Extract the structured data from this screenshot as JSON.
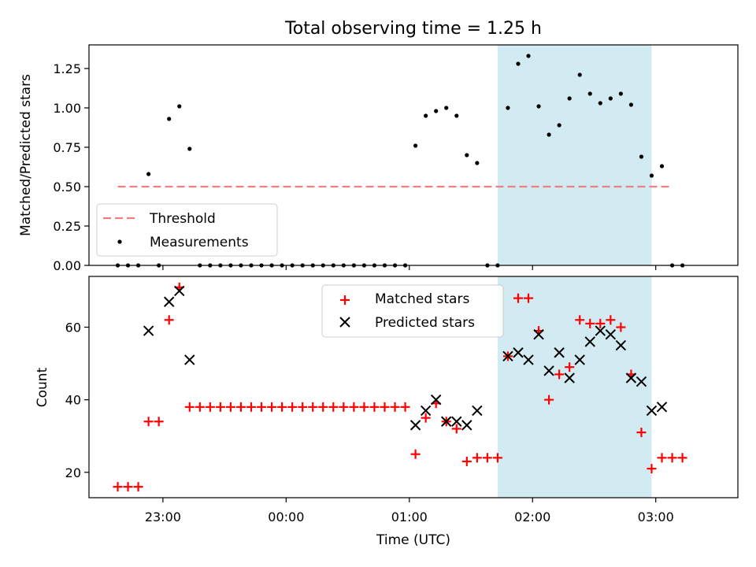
{
  "chart_data": {
    "type": "scatter",
    "title": "Total observing time = 1.25 h",
    "xlabel": "Time (UTC)",
    "x_unit": "UTC time",
    "xlim": [
      "22:24",
      "03:40"
    ],
    "x_ticks": [
      "23:00",
      "00:00",
      "01:00",
      "02:00",
      "03:00"
    ],
    "highlight_band": {
      "start": "01:43",
      "end": "02:58",
      "color": "#add8e6"
    },
    "top": {
      "ylabel": "Matched/Predicted stars",
      "ylim": [
        0,
        1.4
      ],
      "y_ticks": [
        "0.00",
        "0.25",
        "0.50",
        "0.75",
        "1.00",
        "1.25"
      ],
      "threshold": {
        "name": "Threshold",
        "value": 0.5,
        "x_start": "22:38",
        "x_end": "03:08",
        "color": "#f08080"
      },
      "measurements": {
        "name": "Measurements",
        "color": "#000000",
        "points": [
          [
            "22:38",
            0
          ],
          [
            "22:43",
            0
          ],
          [
            "22:48",
            0
          ],
          [
            "22:53",
            0.58
          ],
          [
            "22:58",
            0
          ],
          [
            "23:03",
            0.93
          ],
          [
            "23:08",
            1.01
          ],
          [
            "23:13",
            0.74
          ],
          [
            "23:18",
            0
          ],
          [
            "23:23",
            0
          ],
          [
            "23:28",
            0
          ],
          [
            "23:33",
            0
          ],
          [
            "23:38",
            0
          ],
          [
            "23:43",
            0
          ],
          [
            "23:48",
            0
          ],
          [
            "23:53",
            0
          ],
          [
            "23:58",
            0
          ],
          [
            "00:03",
            0
          ],
          [
            "00:08",
            0
          ],
          [
            "00:13",
            0
          ],
          [
            "00:18",
            0
          ],
          [
            "00:23",
            0
          ],
          [
            "00:28",
            0
          ],
          [
            "00:33",
            0
          ],
          [
            "00:38",
            0
          ],
          [
            "00:43",
            0
          ],
          [
            "00:48",
            0
          ],
          [
            "00:53",
            0
          ],
          [
            "00:58",
            0
          ],
          [
            "01:03",
            0.76
          ],
          [
            "01:08",
            0.95
          ],
          [
            "01:13",
            0.98
          ],
          [
            "01:18",
            1.0
          ],
          [
            "01:23",
            0.95
          ],
          [
            "01:28",
            0.7
          ],
          [
            "01:33",
            0.65
          ],
          [
            "01:38",
            0
          ],
          [
            "01:43",
            0
          ],
          [
            "01:48",
            1.0
          ],
          [
            "01:53",
            1.28
          ],
          [
            "01:58",
            1.33
          ],
          [
            "02:03",
            1.01
          ],
          [
            "02:08",
            0.83
          ],
          [
            "02:13",
            0.89
          ],
          [
            "02:18",
            1.06
          ],
          [
            "02:23",
            1.21
          ],
          [
            "02:28",
            1.09
          ],
          [
            "02:33",
            1.03
          ],
          [
            "02:38",
            1.06
          ],
          [
            "02:43",
            1.09
          ],
          [
            "02:48",
            1.02
          ],
          [
            "02:53",
            0.69
          ],
          [
            "02:58",
            0.57
          ],
          [
            "03:03",
            0.63
          ],
          [
            "03:08",
            0
          ],
          [
            "03:13",
            0
          ]
        ]
      }
    },
    "bottom": {
      "ylabel": "Count",
      "ylim": [
        13,
        74
      ],
      "y_ticks": [
        "20",
        "40",
        "60"
      ],
      "series": [
        {
          "name": "Matched stars",
          "marker": "+",
          "color": "#ff0000",
          "points": [
            [
              "22:38",
              16
            ],
            [
              "22:43",
              16
            ],
            [
              "22:48",
              16
            ],
            [
              "22:53",
              34
            ],
            [
              "22:58",
              34
            ],
            [
              "23:03",
              62
            ],
            [
              "23:08",
              71
            ],
            [
              "23:13",
              38
            ],
            [
              "23:18",
              38
            ],
            [
              "23:23",
              38
            ],
            [
              "23:28",
              38
            ],
            [
              "23:33",
              38
            ],
            [
              "23:38",
              38
            ],
            [
              "23:43",
              38
            ],
            [
              "23:48",
              38
            ],
            [
              "23:53",
              38
            ],
            [
              "23:58",
              38
            ],
            [
              "00:03",
              38
            ],
            [
              "00:08",
              38
            ],
            [
              "00:13",
              38
            ],
            [
              "00:18",
              38
            ],
            [
              "00:23",
              38
            ],
            [
              "00:28",
              38
            ],
            [
              "00:33",
              38
            ],
            [
              "00:38",
              38
            ],
            [
              "00:43",
              38
            ],
            [
              "00:48",
              38
            ],
            [
              "00:53",
              38
            ],
            [
              "00:58",
              38
            ],
            [
              "01:03",
              25
            ],
            [
              "01:08",
              35
            ],
            [
              "01:13",
              39
            ],
            [
              "01:18",
              34
            ],
            [
              "01:23",
              32
            ],
            [
              "01:28",
              23
            ],
            [
              "01:33",
              24
            ],
            [
              "01:38",
              24
            ],
            [
              "01:43",
              24
            ],
            [
              "01:48",
              52
            ],
            [
              "01:53",
              68
            ],
            [
              "01:58",
              68
            ],
            [
              "02:03",
              59
            ],
            [
              "02:08",
              40
            ],
            [
              "02:13",
              47
            ],
            [
              "02:18",
              49
            ],
            [
              "02:23",
              62
            ],
            [
              "02:28",
              61
            ],
            [
              "02:33",
              61
            ],
            [
              "02:38",
              62
            ],
            [
              "02:43",
              60
            ],
            [
              "02:48",
              47
            ],
            [
              "02:53",
              31
            ],
            [
              "02:58",
              21
            ],
            [
              "03:03",
              24
            ],
            [
              "03:08",
              24
            ],
            [
              "03:13",
              24
            ]
          ]
        },
        {
          "name": "Predicted stars",
          "marker": "x",
          "color": "#000000",
          "points": [
            [
              "22:53",
              59
            ],
            [
              "23:03",
              67
            ],
            [
              "23:08",
              70
            ],
            [
              "23:13",
              51
            ],
            [
              "01:03",
              33
            ],
            [
              "01:08",
              37
            ],
            [
              "01:13",
              40
            ],
            [
              "01:18",
              34
            ],
            [
              "01:23",
              34
            ],
            [
              "01:28",
              33
            ],
            [
              "01:33",
              37
            ],
            [
              "01:48",
              52
            ],
            [
              "01:53",
              53
            ],
            [
              "01:58",
              51
            ],
            [
              "02:03",
              58
            ],
            [
              "02:08",
              48
            ],
            [
              "02:13",
              53
            ],
            [
              "02:18",
              46
            ],
            [
              "02:23",
              51
            ],
            [
              "02:28",
              56
            ],
            [
              "02:33",
              59
            ],
            [
              "02:38",
              58
            ],
            [
              "02:43",
              55
            ],
            [
              "02:48",
              46
            ],
            [
              "02:53",
              45
            ],
            [
              "02:58",
              37
            ],
            [
              "03:03",
              38
            ]
          ]
        }
      ]
    }
  }
}
